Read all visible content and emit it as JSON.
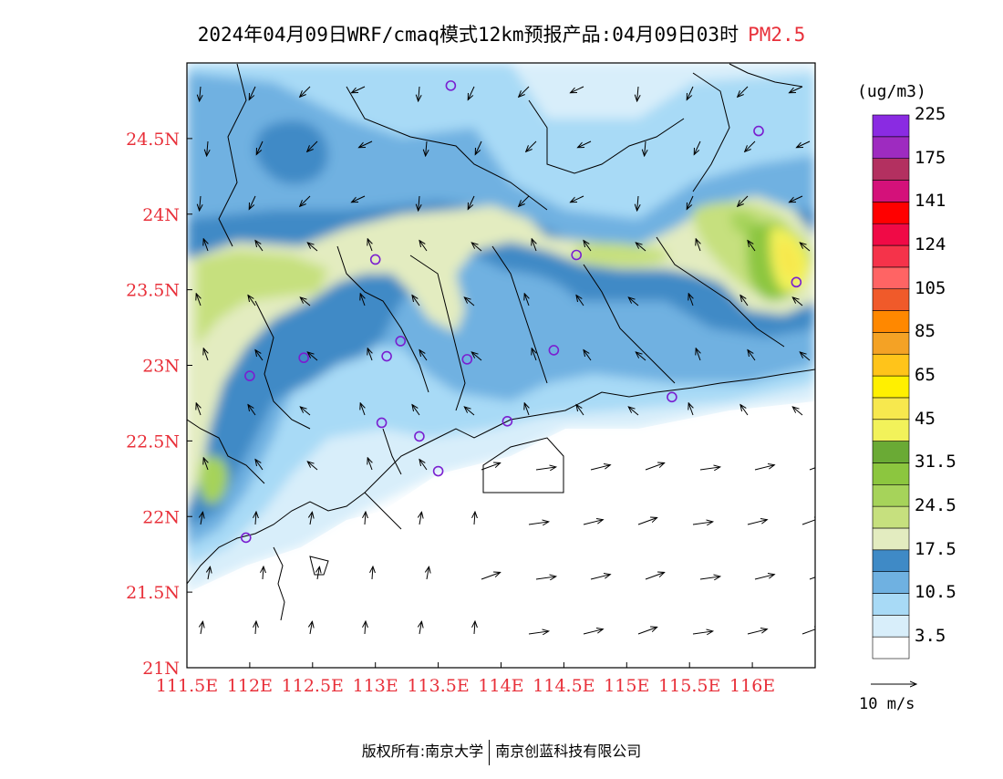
{
  "title": {
    "text": "2024年04月09日WRF/cmaq模式12km预报产品:04月09日03时",
    "variable": "PM2.5"
  },
  "map": {
    "lon_range": [
      111.5,
      116.5
    ],
    "lat_range": [
      21.0,
      25.0
    ],
    "lon_ticks": [
      "111.5E",
      "112E",
      "112.5E",
      "113E",
      "113.5E",
      "114E",
      "114.5E",
      "115E",
      "115.5E",
      "116E"
    ],
    "lon_tick_values": [
      111.5,
      112.0,
      112.5,
      113.0,
      113.5,
      114.0,
      114.5,
      115.0,
      115.5,
      116.0
    ],
    "lat_ticks": [
      "21N",
      "21.5N",
      "22N",
      "22.5N",
      "23N",
      "23.5N",
      "24N",
      "24.5N"
    ],
    "lat_tick_values": [
      21.0,
      21.5,
      22.0,
      22.5,
      23.0,
      23.5,
      24.0,
      24.5
    ],
    "tick_color": "#e8303a",
    "station_color": "#7a1fd0",
    "stations": [
      {
        "lon": 113.6,
        "lat": 24.85
      },
      {
        "lon": 116.05,
        "lat": 24.55
      },
      {
        "lon": 113.0,
        "lat": 23.7
      },
      {
        "lon": 114.6,
        "lat": 23.73
      },
      {
        "lon": 116.35,
        "lat": 23.55
      },
      {
        "lon": 112.43,
        "lat": 23.05
      },
      {
        "lon": 113.09,
        "lat": 23.06
      },
      {
        "lon": 113.2,
        "lat": 23.16
      },
      {
        "lon": 113.73,
        "lat": 23.04
      },
      {
        "lon": 114.42,
        "lat": 23.1
      },
      {
        "lon": 112.0,
        "lat": 22.93
      },
      {
        "lon": 115.36,
        "lat": 22.79
      },
      {
        "lon": 113.05,
        "lat": 22.62
      },
      {
        "lon": 113.35,
        "lat": 22.53
      },
      {
        "lon": 114.05,
        "lat": 22.63
      },
      {
        "lon": 113.5,
        "lat": 22.3
      },
      {
        "lon": 111.97,
        "lat": 21.86
      }
    ]
  },
  "colorbar": {
    "unit": "(ug/m3)",
    "colors": [
      "#ffffff",
      "#d8eefa",
      "#a8daf6",
      "#6fb1e1",
      "#3f8ac6",
      "#e3ecc0",
      "#c6e07e",
      "#a6d35a",
      "#8cc63f",
      "#6aaa35",
      "#f2f25a",
      "#f7e84e",
      "#fff000",
      "#ffc41a",
      "#f4a225",
      "#ff8800",
      "#f05a2a",
      "#ff6464",
      "#f5334a",
      "#f00a46",
      "#ff0000",
      "#d4117a",
      "#b33060",
      "#9e2bc0",
      "#8a2be2"
    ],
    "labels": [
      "3.5",
      "10.5",
      "17.5",
      "24.5",
      "31.5",
      "45",
      "65",
      "85",
      "105",
      "124",
      "141",
      "175",
      "225"
    ]
  },
  "vector_reference": {
    "label": "10 m/s"
  },
  "footer": {
    "left": "版权所有:南京大学",
    "right": "南京创蓝科技有限公司"
  }
}
